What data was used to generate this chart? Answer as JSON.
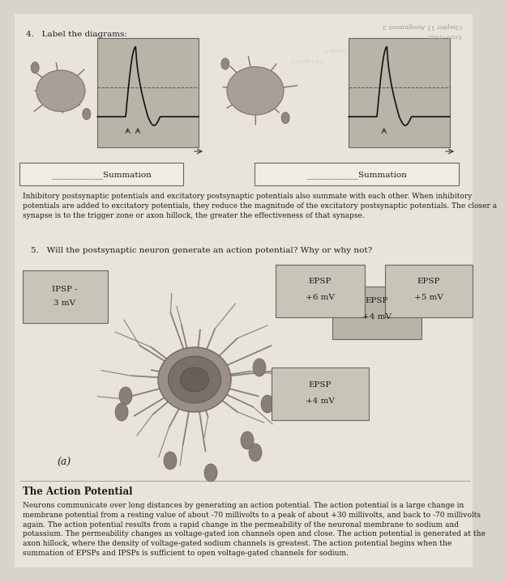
{
  "bg_color": "#d8d4ca",
  "page_color": "#e8e4da",
  "title_q4": "4.   Label the diagrams:",
  "header_mirror": "Chapter 11 Assignment 3",
  "header_mirror2": "Extra credit",
  "summation1": "____________Summation",
  "summation2": "____________Summation",
  "paragraph": "Inhibitory postsynaptic potentials and excitatory postsynaptic potentials also summate with each other. When inhibitory\npotentials are added to excitatory potentials, they reduce the magnitude of the excitatory postsynaptic potentials. The closer a\nsynapse is to the trigger zone or axon hillock, the greater the effectiveness of that synapse.",
  "q5": "5.   Will the postsynaptic neuron generate an action potential? Why or why not?",
  "ipsp_label": "IPSP -",
  "ipsp_val": "3 mV",
  "epsp1_label": "EPSP",
  "epsp1_val": "+6 mV",
  "epsp2_label": "EPSP",
  "epsp2_val": "+4 mV",
  "epsp3_label": "EPSP",
  "epsp3_val": "+5 mV",
  "epsp4_label": "EPSP",
  "epsp4_val": "+4 mV",
  "neuron_a": "(a)",
  "ap_title": "The Action Potential",
  "ap_text": "Neurons communicate over long distances by generating an action potential. The action potential is a large change in\nmembrane potential from a resting value of about -70 millivolts to a peak of about +30 millivolts, and back to -70 millivolts\nagain. The action potential results from a rapid change in the permeability of the neuronal membrane to sodium and\npotassium. The permeability changes as voltage-gated ion channels open and close. The action potential is generated at the\naxon hillock, where the density of voltage-gated sodium channels is greatest. The action potential begins when the\nsummation of EPSPs and IPSPs is sufficient to open voltage-gated channels for sodium.",
  "box_color": "#b8b4a8",
  "box_color2": "#c8c4b8",
  "text_color": "#1a1a1a"
}
